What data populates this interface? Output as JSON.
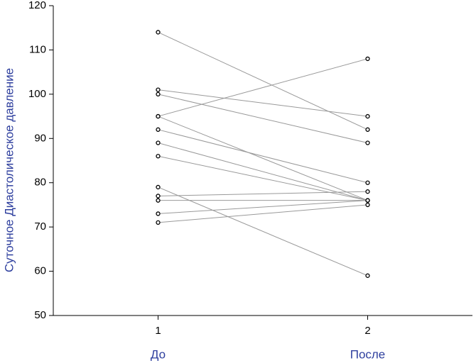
{
  "chart_data": {
    "type": "line",
    "ylabel": "Суточное Диастолическое давление",
    "x": [
      1,
      2
    ],
    "group_labels": [
      "До",
      "После"
    ],
    "xlim": [
      0.5,
      2.5
    ],
    "xticks": [
      1,
      2
    ],
    "ylim": [
      50,
      120
    ],
    "yticks": [
      50,
      60,
      70,
      80,
      90,
      100,
      110,
      120
    ],
    "color": "#999999",
    "series": [
      {
        "values": [
          114,
          92
        ]
      },
      {
        "values": [
          101,
          95
        ]
      },
      {
        "values": [
          100,
          89
        ]
      },
      {
        "values": [
          95,
          108
        ]
      },
      {
        "values": [
          95,
          76
        ]
      },
      {
        "values": [
          92,
          80
        ]
      },
      {
        "values": [
          89,
          76
        ]
      },
      {
        "values": [
          86,
          76
        ]
      },
      {
        "values": [
          79,
          59
        ]
      },
      {
        "values": [
          77,
          78
        ]
      },
      {
        "values": [
          76,
          76
        ]
      },
      {
        "values": [
          73,
          76
        ]
      },
      {
        "values": [
          71,
          75
        ]
      }
    ]
  }
}
